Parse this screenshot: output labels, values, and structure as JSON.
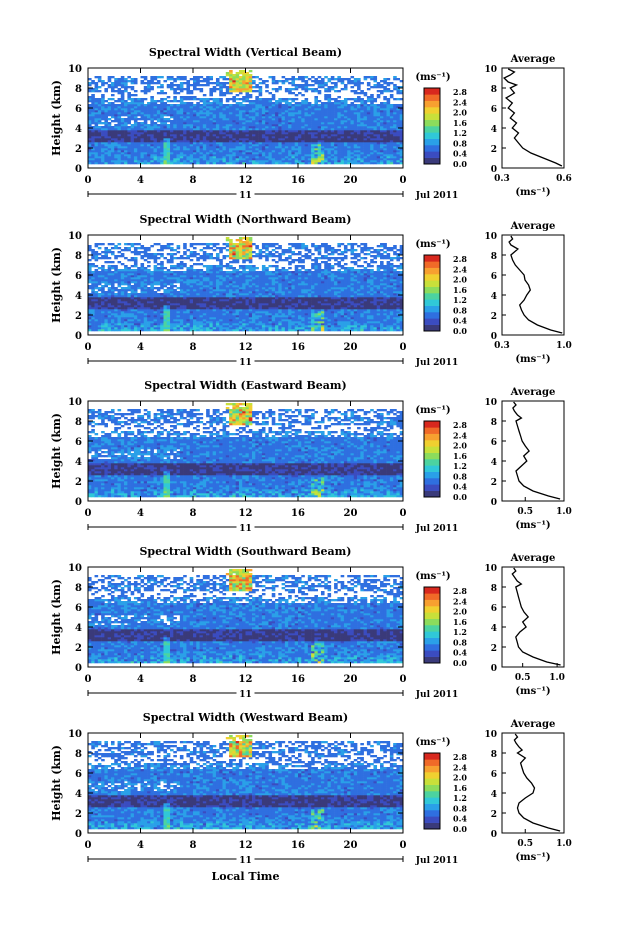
{
  "figure": {
    "xlabel_bottom": "Local Time",
    "date_label": "Jul 2011",
    "day_label": "11",
    "unit_label": "(ms⁻¹)",
    "colorbar_ticks": [
      "2.8",
      "2.4",
      "2.0",
      "1.6",
      "1.2",
      "0.8",
      "0.4",
      "0.0"
    ],
    "colormap": [
      "#3a3a7a",
      "#3b4cc0",
      "#2f6fe0",
      "#2aa0e8",
      "#30c8d8",
      "#4cd3a0",
      "#8cdc5c",
      "#c8e03a",
      "#f0d030",
      "#f7a030",
      "#f06a28",
      "#d8281e"
    ]
  },
  "chart_data": [
    {
      "type": "heatmap",
      "title": "Spectral Width (Vertical Beam)",
      "ylabel": "Height (km)",
      "xlim": [
        0,
        24
      ],
      "ylim": [
        0,
        10
      ],
      "x_ticks": [
        "0",
        "4",
        "8",
        "12",
        "16",
        "20",
        "0"
      ],
      "y_ticks": [
        "0",
        "2",
        "4",
        "6",
        "8",
        "10"
      ],
      "colorbar_range": [
        0,
        2.8
      ],
      "profile": {
        "title": "Average",
        "xlabel": "(ms⁻¹)",
        "x_ticks": [
          "0.3",
          "0.6"
        ],
        "xlim": [
          0.3,
          0.6
        ],
        "ylim": [
          0,
          10
        ],
        "y_ticks": [
          "0",
          "2",
          "4",
          "6",
          "8",
          "10"
        ],
        "x": [
          0.59,
          0.56,
          0.5,
          0.44,
          0.4,
          0.38,
          0.36,
          0.38,
          0.35,
          0.37,
          0.34,
          0.36,
          0.33,
          0.35,
          0.32,
          0.36,
          0.34,
          0.37,
          0.33,
          0.31,
          0.34,
          0.36,
          0.33
        ],
        "y": [
          0.2,
          0.5,
          1.0,
          1.5,
          2.0,
          2.5,
          3.0,
          3.5,
          4.0,
          4.5,
          5.0,
          5.5,
          6.0,
          6.5,
          7.0,
          7.5,
          8.0,
          8.3,
          8.6,
          9.0,
          9.3,
          9.6,
          9.9
        ]
      }
    },
    {
      "type": "heatmap",
      "title": "Spectral Width (Northward Beam)",
      "ylabel": "Height (km)",
      "xlim": [
        0,
        24
      ],
      "ylim": [
        0,
        10
      ],
      "x_ticks": [
        "0",
        "4",
        "8",
        "12",
        "16",
        "20",
        "0"
      ],
      "y_ticks": [
        "0",
        "2",
        "4",
        "6",
        "8",
        "10"
      ],
      "colorbar_range": [
        0,
        2.8
      ],
      "profile": {
        "title": "Average",
        "xlabel": "(ms⁻¹)",
        "x_ticks": [
          "0.3",
          "1.0"
        ],
        "xlim": [
          0.3,
          1.0
        ],
        "ylim": [
          0,
          10
        ],
        "y_ticks": [
          "0",
          "2",
          "4",
          "6",
          "8",
          "10"
        ],
        "x": [
          0.98,
          0.85,
          0.7,
          0.6,
          0.55,
          0.52,
          0.5,
          0.55,
          0.58,
          0.62,
          0.6,
          0.56,
          0.55,
          0.5,
          0.45,
          0.42,
          0.4,
          0.44,
          0.48,
          0.4,
          0.38,
          0.42,
          0.4
        ],
        "y": [
          0.2,
          0.5,
          1.0,
          1.5,
          2.0,
          2.5,
          3.0,
          3.5,
          4.0,
          4.5,
          5.0,
          5.5,
          6.0,
          6.5,
          7.0,
          7.5,
          8.0,
          8.3,
          8.6,
          9.0,
          9.3,
          9.6,
          9.9
        ]
      }
    },
    {
      "type": "heatmap",
      "title": "Spectral Width (Eastward Beam)",
      "ylabel": "Height (km)",
      "xlim": [
        0,
        24
      ],
      "ylim": [
        0,
        10
      ],
      "x_ticks": [
        "0",
        "4",
        "8",
        "12",
        "16",
        "20",
        "0"
      ],
      "y_ticks": [
        "0",
        "2",
        "4",
        "6",
        "8",
        "10"
      ],
      "colorbar_range": [
        0,
        2.8
      ],
      "profile": {
        "title": "Average",
        "xlabel": "(ms⁻¹)",
        "x_ticks": [
          "0.5",
          "1.0"
        ],
        "xlim": [
          0.2,
          1.0
        ],
        "ylim": [
          0,
          10
        ],
        "y_ticks": [
          "0",
          "2",
          "4",
          "6",
          "8",
          "10"
        ],
        "x": [
          0.95,
          0.8,
          0.6,
          0.48,
          0.42,
          0.4,
          0.38,
          0.45,
          0.52,
          0.48,
          0.55,
          0.5,
          0.46,
          0.44,
          0.42,
          0.4,
          0.38,
          0.45,
          0.4,
          0.36,
          0.34,
          0.38,
          0.35
        ],
        "y": [
          0.2,
          0.5,
          1.0,
          1.5,
          2.0,
          2.5,
          3.0,
          3.5,
          4.0,
          4.5,
          5.0,
          5.5,
          6.0,
          6.5,
          7.0,
          7.5,
          8.0,
          8.3,
          8.6,
          9.0,
          9.3,
          9.6,
          9.9
        ]
      }
    },
    {
      "type": "heatmap",
      "title": "Spectral Width (Southward Beam)",
      "ylabel": "Height (km)",
      "xlim": [
        0,
        24
      ],
      "ylim": [
        0,
        10
      ],
      "x_ticks": [
        "0",
        "4",
        "8",
        "12",
        "16",
        "20",
        "0"
      ],
      "y_ticks": [
        "0",
        "2",
        "4",
        "6",
        "8",
        "10"
      ],
      "colorbar_range": [
        0,
        2.8
      ],
      "profile": {
        "title": "Average",
        "xlabel": "(ms⁻¹)",
        "x_ticks": [
          "0.5",
          "1.0"
        ],
        "xlim": [
          0.2,
          1.1
        ],
        "ylim": [
          0,
          10
        ],
        "y_ticks": [
          "0",
          "2",
          "4",
          "6",
          "8",
          "10"
        ],
        "x": [
          1.05,
          0.85,
          0.65,
          0.5,
          0.44,
          0.42,
          0.4,
          0.46,
          0.55,
          0.5,
          0.58,
          0.52,
          0.48,
          0.46,
          0.44,
          0.42,
          0.4,
          0.48,
          0.42,
          0.38,
          0.35,
          0.4,
          0.37
        ],
        "y": [
          0.2,
          0.5,
          1.0,
          1.5,
          2.0,
          2.5,
          3.0,
          3.5,
          4.0,
          4.5,
          5.0,
          5.5,
          6.0,
          6.5,
          7.0,
          7.5,
          8.0,
          8.3,
          8.6,
          9.0,
          9.3,
          9.6,
          9.9
        ]
      }
    },
    {
      "type": "heatmap",
      "title": "Spectral Width (Westward Beam)",
      "ylabel": "Height (km)",
      "xlim": [
        0,
        24
      ],
      "ylim": [
        0,
        10
      ],
      "x_ticks": [
        "0",
        "4",
        "8",
        "12",
        "16",
        "20",
        "0"
      ],
      "y_ticks": [
        "0",
        "2",
        "4",
        "6",
        "8",
        "10"
      ],
      "colorbar_range": [
        0,
        2.8
      ],
      "profile": {
        "title": "Average",
        "xlabel": "(ms⁻¹)",
        "x_ticks": [
          "0.5",
          "1.0"
        ],
        "xlim": [
          0.2,
          1.0
        ],
        "ylim": [
          0,
          10
        ],
        "y_ticks": [
          "0",
          "2",
          "4",
          "6",
          "8",
          "10"
        ],
        "x": [
          0.95,
          0.8,
          0.6,
          0.48,
          0.42,
          0.4,
          0.42,
          0.5,
          0.6,
          0.62,
          0.58,
          0.52,
          0.48,
          0.46,
          0.44,
          0.5,
          0.4,
          0.46,
          0.42,
          0.38,
          0.36,
          0.4,
          0.37
        ],
        "y": [
          0.2,
          0.5,
          1.0,
          1.5,
          2.0,
          2.5,
          3.0,
          3.5,
          4.0,
          4.5,
          5.0,
          5.5,
          6.0,
          6.5,
          7.0,
          7.5,
          8.0,
          8.3,
          8.6,
          9.0,
          9.3,
          9.6,
          9.9
        ]
      }
    }
  ]
}
